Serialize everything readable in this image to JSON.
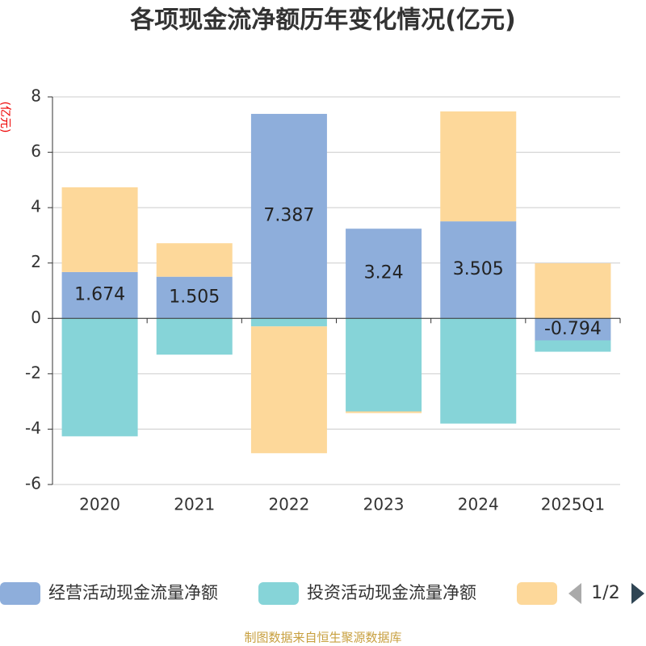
{
  "chart_data": {
    "type": "bar",
    "stacked": true,
    "title": "各项现金流净额历年变化情况(亿元)",
    "y_label": "(亿元)",
    "categories": [
      "2020",
      "2021",
      "2022",
      "2023",
      "2024",
      "2025Q1"
    ],
    "series": [
      {
        "name": "经营活动现金流量净额",
        "color": "#8eaedb",
        "values": [
          1.674,
          1.505,
          7.387,
          3.24,
          3.505,
          -0.794
        ],
        "show_labels": true
      },
      {
        "name": "投资活动现金流量净额",
        "color": "#86d4d8",
        "values": [
          -4.26,
          -1.31,
          -0.29,
          -3.36,
          -3.8,
          -0.41
        ]
      },
      {
        "color": "#fdd89a",
        "values": [
          3.06,
          1.21,
          -4.58,
          -0.06,
          3.97,
          1.99
        ]
      }
    ],
    "ylim": [
      -6,
      8
    ],
    "yticks": [
      -6,
      -4,
      -2,
      0,
      2,
      4,
      6,
      8
    ],
    "grid": true,
    "legend_page": "1/2",
    "source": "制图数据来自恒生聚源数据库"
  }
}
